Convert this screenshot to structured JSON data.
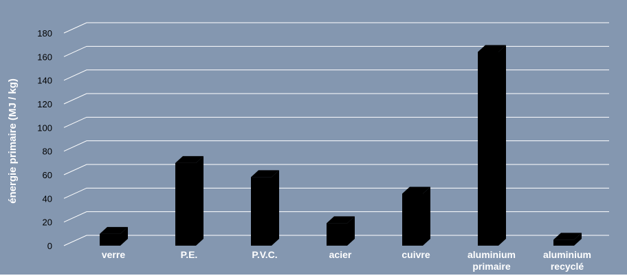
{
  "chart_data": {
    "type": "bar",
    "ylabel": "énergie primaire (MJ / kg)",
    "ylim": [
      0,
      180
    ],
    "yticks": [
      0,
      20,
      40,
      60,
      80,
      100,
      120,
      140,
      160,
      180
    ],
    "categories": [
      "verre",
      "P.E.",
      "P.V.C.",
      "acier",
      "cuivre",
      "aluminium primaire",
      "aluminium recyclé"
    ],
    "category_lines": [
      [
        "verre"
      ],
      [
        "P.E."
      ],
      [
        "P.V.C."
      ],
      [
        "acier"
      ],
      [
        "cuivre"
      ],
      [
        "aluminium",
        "primaire"
      ],
      [
        "aluminium",
        "recyclé"
      ]
    ],
    "values": [
      10,
      70,
      58,
      19,
      44,
      164,
      5
    ],
    "grid": true,
    "legend": "none",
    "colors": {
      "background": "#8497b0",
      "bar": "#000000",
      "grid": "#ffffff",
      "category_text": "#ffffff",
      "tick_text": "#000000"
    }
  }
}
